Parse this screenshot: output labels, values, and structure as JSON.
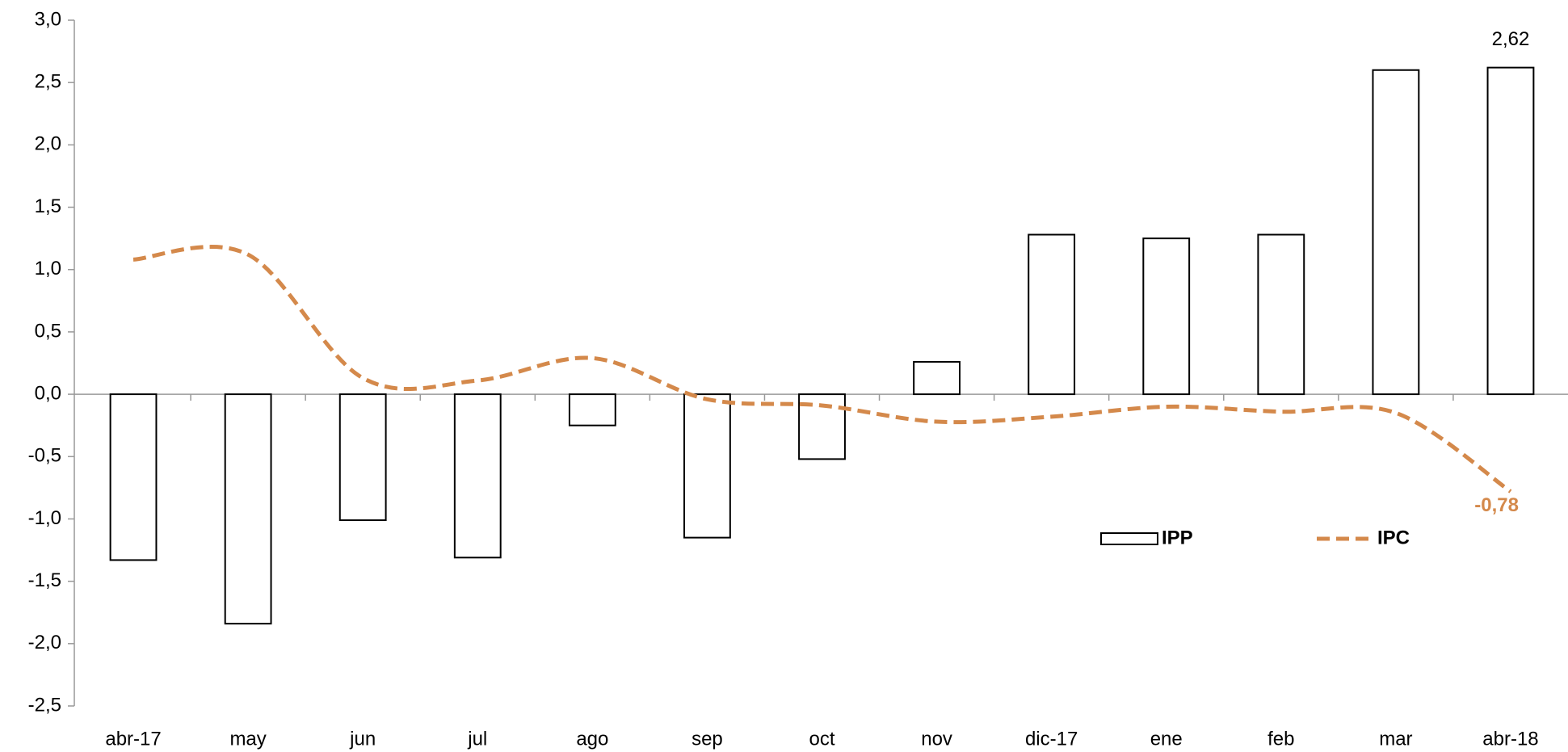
{
  "chart_data": {
    "type": "bar_line",
    "categories": [
      "abr-17",
      "may",
      "jun",
      "jul",
      "ago",
      "sep",
      "oct",
      "nov",
      "dic-17",
      "ene",
      "feb",
      "mar",
      "abr-18"
    ],
    "series": [
      {
        "name": "IPP",
        "type": "bar",
        "color": "#ffffff",
        "stroke": "#000000",
        "values": [
          -1.33,
          -1.84,
          -1.01,
          -1.31,
          -0.25,
          -1.15,
          -0.52,
          0.26,
          1.28,
          1.25,
          1.28,
          2.6,
          2.62
        ],
        "value_labels": [
          null,
          null,
          null,
          null,
          null,
          null,
          null,
          null,
          null,
          null,
          null,
          null,
          "2,62"
        ]
      },
      {
        "name": "IPC",
        "type": "line",
        "color": "#d4894b",
        "dashed": true,
        "smooth": true,
        "values": [
          1.08,
          1.12,
          0.13,
          0.11,
          0.29,
          -0.04,
          -0.09,
          -0.22,
          -0.18,
          -0.1,
          -0.14,
          -0.15,
          -0.78
        ],
        "value_labels": [
          null,
          null,
          null,
          null,
          null,
          null,
          null,
          null,
          null,
          null,
          null,
          null,
          "-0,78"
        ]
      }
    ],
    "ylim": [
      -2.5,
      3.0
    ],
    "yticks": [
      {
        "value": -2.5,
        "label": "-2,5"
      },
      {
        "value": -2.0,
        "label": "-2,0"
      },
      {
        "value": -1.5,
        "label": "-1,5"
      },
      {
        "value": -1.0,
        "label": "-1,0"
      },
      {
        "value": -0.5,
        "label": "-0,5"
      },
      {
        "value": 0,
        "label": "0,0"
      },
      {
        "value": 0.5,
        "label": "0,5"
      },
      {
        "value": 1.0,
        "label": "1,0"
      },
      {
        "value": 1.5,
        "label": "1,5"
      },
      {
        "value": 2.0,
        "label": "2,0"
      },
      {
        "value": 2.5,
        "label": "2,5"
      },
      {
        "value": 3.0,
        "label": "3,0"
      }
    ],
    "grid": false
  }
}
